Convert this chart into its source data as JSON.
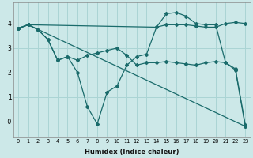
{
  "xlabel": "Humidex (Indice chaleur)",
  "background_color": "#cce8e8",
  "grid_color": "#aad4d4",
  "line_color": "#1a6b6b",
  "xlim": [
    -0.5,
    23.5
  ],
  "ylim": [
    -0.65,
    4.85
  ],
  "xticks": [
    0,
    1,
    2,
    3,
    4,
    5,
    6,
    7,
    8,
    9,
    10,
    11,
    12,
    13,
    14,
    15,
    16,
    17,
    18,
    19,
    20,
    21,
    22,
    23
  ],
  "yticks": [
    0,
    1,
    2,
    3,
    4
  ],
  "line1_x": [
    0,
    1,
    14,
    15,
    16,
    17,
    18,
    19,
    20,
    21,
    22,
    23
  ],
  "line1_y": [
    3.8,
    3.95,
    3.85,
    3.95,
    3.95,
    3.95,
    3.9,
    3.85,
    3.85,
    4.0,
    4.05,
    4.0
  ],
  "line2_x": [
    0,
    1,
    23
  ],
  "line2_y": [
    3.8,
    3.95,
    -0.2
  ],
  "line3_x": [
    0,
    1,
    2,
    3,
    4,
    5,
    6,
    7,
    8,
    9,
    10,
    11,
    12,
    13,
    14,
    15,
    16,
    17,
    18,
    19,
    20,
    21,
    22,
    23
  ],
  "line3_y": [
    3.8,
    3.95,
    3.75,
    3.35,
    2.5,
    2.65,
    2.0,
    0.6,
    -0.1,
    1.2,
    1.45,
    2.3,
    2.65,
    2.75,
    3.85,
    4.4,
    4.45,
    4.3,
    4.0,
    3.95,
    3.95,
    2.4,
    2.1,
    -0.2
  ],
  "line4_x": [
    0,
    1,
    2,
    3,
    4,
    5,
    6,
    7,
    8,
    9,
    10,
    11,
    12,
    13,
    14,
    15,
    16,
    17,
    18,
    19,
    20,
    21,
    22,
    23
  ],
  "line4_y": [
    3.8,
    3.95,
    3.75,
    3.35,
    2.5,
    2.65,
    2.5,
    2.7,
    2.8,
    2.9,
    3.0,
    2.7,
    2.3,
    2.4,
    2.4,
    2.45,
    2.4,
    2.35,
    2.3,
    2.4,
    2.45,
    2.4,
    2.15,
    -0.15
  ]
}
